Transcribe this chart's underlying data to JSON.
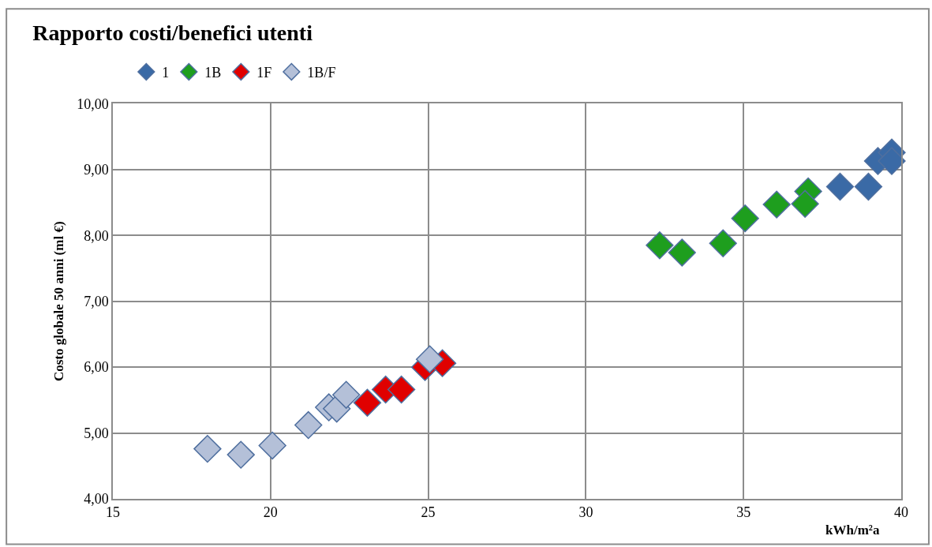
{
  "chart_data": {
    "type": "scatter",
    "title": "Rapporto costi/benefici utenti",
    "xlabel": "kWh/m²a",
    "ylabel": "Costo globale 50 anni (ml €)",
    "xlim": [
      15,
      40
    ],
    "xticks": [
      15,
      20,
      25,
      30,
      35,
      40
    ],
    "ylim": [
      4,
      10
    ],
    "yticks": [
      {
        "value": 4,
        "label": "4,00"
      },
      {
        "value": 5,
        "label": "5,00"
      },
      {
        "value": 6,
        "label": "6,00"
      },
      {
        "value": 7,
        "label": "7,00"
      },
      {
        "value": 8,
        "label": "8,00"
      },
      {
        "value": 9,
        "label": "9,00"
      },
      {
        "value": 10,
        "label": "10,00"
      }
    ],
    "grid": true,
    "legend": "top left",
    "marker": "diamond",
    "series": [
      {
        "name": "1",
        "color": "#3a6aa6",
        "x": [
          38.06,
          38.96,
          39.26,
          39.7,
          39.7
        ],
        "values": [
          8.74,
          8.74,
          9.13,
          9.26,
          9.13
        ]
      },
      {
        "name": "1B",
        "color": "#1e9e1e",
        "x": [
          32.34,
          33.05,
          34.35,
          35.05,
          36.05,
          37.05,
          36.95
        ],
        "values": [
          7.85,
          7.74,
          7.88,
          8.26,
          8.47,
          8.67,
          8.48
        ]
      },
      {
        "name": "1F",
        "color": "#e00000",
        "x": [
          23.07,
          23.65,
          24.15,
          24.9,
          25.45
        ],
        "values": [
          5.46,
          5.66,
          5.66,
          6.0,
          6.06
        ]
      },
      {
        "name": "1B/F",
        "color": "#b4c0d8",
        "x": [
          18.0,
          19.06,
          20.06,
          21.2,
          21.85,
          22.1,
          22.4,
          25.05
        ],
        "values": [
          4.76,
          4.67,
          4.81,
          5.12,
          5.39,
          5.37,
          5.58,
          6.12
        ]
      }
    ]
  }
}
